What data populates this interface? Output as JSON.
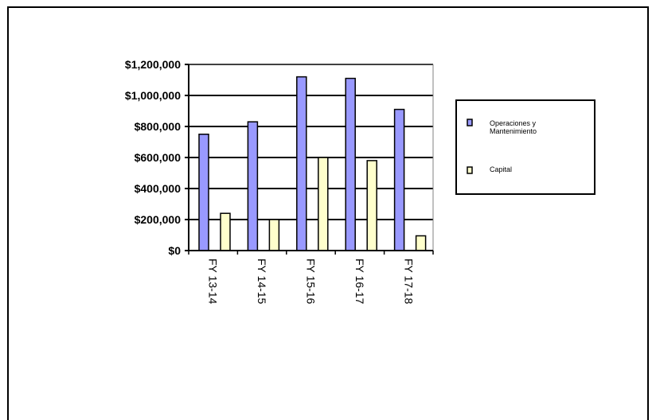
{
  "chart_data": {
    "type": "bar",
    "categories": [
      "FY 13-14",
      "FY 14-15",
      "FY 15-16",
      "FY 16-17",
      "FY 17-18"
    ],
    "series": [
      {
        "name": "Operaciones y Mantenimiento",
        "legend_lines": [
          "Operaciones y",
          "Mantenimiento"
        ],
        "values": [
          750000,
          830000,
          1120000,
          1110000,
          910000
        ],
        "color": "#9999ff"
      },
      {
        "name": "Capital",
        "legend_lines": [
          "Capital"
        ],
        "values": [
          240000,
          200000,
          600000,
          580000,
          95000
        ],
        "color": "#ffffcc"
      }
    ],
    "y_ticks": [
      "$0",
      "$200,000",
      "$400,000",
      "$600,000",
      "$800,000",
      "$1,000,000",
      "$1,200,000"
    ],
    "ylim": [
      0,
      1200000
    ],
    "grid": true,
    "legend_position": "right"
  }
}
